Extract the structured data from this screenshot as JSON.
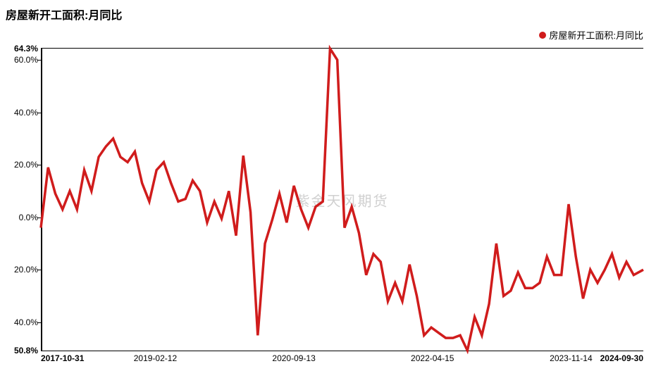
{
  "chart": {
    "type": "line",
    "title": "房屋新开工面积:月同比",
    "legend_label": "房屋新开工面积:月同比",
    "watermark": "紫金天风期货",
    "line_color": "#d01c1c",
    "line_width": 1.6,
    "legend_marker_color": "#d01c1c",
    "background_color": "#ffffff",
    "axis_color": "#000000",
    "y_axis": {
      "min": -50.8,
      "max": 64.3,
      "ticks": [
        {
          "v": 64.3,
          "label": "64.3%",
          "bold": true
        },
        {
          "v": 60.0,
          "label": "60.0%",
          "bold": false
        },
        {
          "v": 40.0,
          "label": "40.0%",
          "bold": false
        },
        {
          "v": 20.0,
          "label": "20.0%",
          "bold": false
        },
        {
          "v": 0.0,
          "label": "0.0%",
          "bold": false
        },
        {
          "v": -20.0,
          "label": "20.0%",
          "bold": false
        },
        {
          "v": -40.0,
          "label": "40.0%",
          "bold": false
        },
        {
          "v": -50.8,
          "label": "50.8%",
          "bold": true
        }
      ]
    },
    "x_axis": {
      "ticks": [
        {
          "t": 0,
          "label": "2017-10-31",
          "bold": true,
          "pos": "first"
        },
        {
          "t": 0.19,
          "label": "2019-02-12",
          "bold": false,
          "pos": "mid"
        },
        {
          "t": 0.42,
          "label": "2020-09-13",
          "bold": false,
          "pos": "mid"
        },
        {
          "t": 0.65,
          "label": "2022-04-15",
          "bold": false,
          "pos": "mid"
        },
        {
          "t": 0.88,
          "label": "2023-11-14",
          "bold": false,
          "pos": "mid"
        },
        {
          "t": 1.0,
          "label": "2024-09-30",
          "bold": true,
          "pos": "last"
        }
      ]
    },
    "series": [
      {
        "t": 0.0,
        "v": -4.0
      },
      {
        "t": 0.012,
        "v": 19.0
      },
      {
        "t": 0.024,
        "v": 9.0
      },
      {
        "t": 0.036,
        "v": 3.0
      },
      {
        "t": 0.048,
        "v": 10.0
      },
      {
        "t": 0.06,
        "v": 3.0
      },
      {
        "t": 0.072,
        "v": 18.0
      },
      {
        "t": 0.084,
        "v": 10.0
      },
      {
        "t": 0.096,
        "v": 23.0
      },
      {
        "t": 0.108,
        "v": 27.0
      },
      {
        "t": 0.12,
        "v": 30.0
      },
      {
        "t": 0.132,
        "v": 23.0
      },
      {
        "t": 0.144,
        "v": 21.0
      },
      {
        "t": 0.156,
        "v": 25.0
      },
      {
        "t": 0.168,
        "v": 13.0
      },
      {
        "t": 0.18,
        "v": 6.0
      },
      {
        "t": 0.192,
        "v": 18.0
      },
      {
        "t": 0.204,
        "v": 21.0
      },
      {
        "t": 0.216,
        "v": 13.0
      },
      {
        "t": 0.228,
        "v": 6.0
      },
      {
        "t": 0.24,
        "v": 7.0
      },
      {
        "t": 0.252,
        "v": 14.0
      },
      {
        "t": 0.264,
        "v": 10.0
      },
      {
        "t": 0.276,
        "v": -2.0
      },
      {
        "t": 0.288,
        "v": 6.0
      },
      {
        "t": 0.3,
        "v": -0.5
      },
      {
        "t": 0.312,
        "v": 10.0
      },
      {
        "t": 0.324,
        "v": -7.0
      },
      {
        "t": 0.336,
        "v": 23.5
      },
      {
        "t": 0.348,
        "v": 2.0
      },
      {
        "t": 0.36,
        "v": -45.0
      },
      {
        "t": 0.372,
        "v": -10.0
      },
      {
        "t": 0.384,
        "v": -1.0
      },
      {
        "t": 0.396,
        "v": 9.0
      },
      {
        "t": 0.408,
        "v": -2.0
      },
      {
        "t": 0.42,
        "v": 12.0
      },
      {
        "t": 0.432,
        "v": 3.0
      },
      {
        "t": 0.444,
        "v": -4.0
      },
      {
        "t": 0.456,
        "v": 4.0
      },
      {
        "t": 0.468,
        "v": 6.0
      },
      {
        "t": 0.48,
        "v": 64.3
      },
      {
        "t": 0.492,
        "v": 60.0
      },
      {
        "t": 0.504,
        "v": -4.0
      },
      {
        "t": 0.516,
        "v": 4.0
      },
      {
        "t": 0.528,
        "v": -6.0
      },
      {
        "t": 0.54,
        "v": -22.0
      },
      {
        "t": 0.552,
        "v": -14.0
      },
      {
        "t": 0.564,
        "v": -17.0
      },
      {
        "t": 0.576,
        "v": -32.0
      },
      {
        "t": 0.588,
        "v": -25.0
      },
      {
        "t": 0.6,
        "v": -32.0
      },
      {
        "t": 0.612,
        "v": -18.0
      },
      {
        "t": 0.624,
        "v": -30.0
      },
      {
        "t": 0.636,
        "v": -45.0
      },
      {
        "t": 0.648,
        "v": -42.0
      },
      {
        "t": 0.66,
        "v": -44.0
      },
      {
        "t": 0.672,
        "v": -46.0
      },
      {
        "t": 0.684,
        "v": -46.0
      },
      {
        "t": 0.696,
        "v": -45.0
      },
      {
        "t": 0.708,
        "v": -50.8
      },
      {
        "t": 0.72,
        "v": -38.0
      },
      {
        "t": 0.732,
        "v": -45.0
      },
      {
        "t": 0.744,
        "v": -33.0
      },
      {
        "t": 0.756,
        "v": -10.0
      },
      {
        "t": 0.768,
        "v": -30.0
      },
      {
        "t": 0.78,
        "v": -28.0
      },
      {
        "t": 0.792,
        "v": -21.0
      },
      {
        "t": 0.804,
        "v": -27.0
      },
      {
        "t": 0.816,
        "v": -27.0
      },
      {
        "t": 0.828,
        "v": -25.0
      },
      {
        "t": 0.84,
        "v": -15.0
      },
      {
        "t": 0.852,
        "v": -22.0
      },
      {
        "t": 0.864,
        "v": -22.0
      },
      {
        "t": 0.876,
        "v": 5.0
      },
      {
        "t": 0.888,
        "v": -15.0
      },
      {
        "t": 0.9,
        "v": -31.0
      },
      {
        "t": 0.912,
        "v": -20.0
      },
      {
        "t": 0.924,
        "v": -25.0
      },
      {
        "t": 0.936,
        "v": -20.0
      },
      {
        "t": 0.948,
        "v": -14.0
      },
      {
        "t": 0.96,
        "v": -23.0
      },
      {
        "t": 0.972,
        "v": -17.0
      },
      {
        "t": 0.984,
        "v": -22.0
      },
      {
        "t": 1.0,
        "v": -20.0
      }
    ]
  }
}
